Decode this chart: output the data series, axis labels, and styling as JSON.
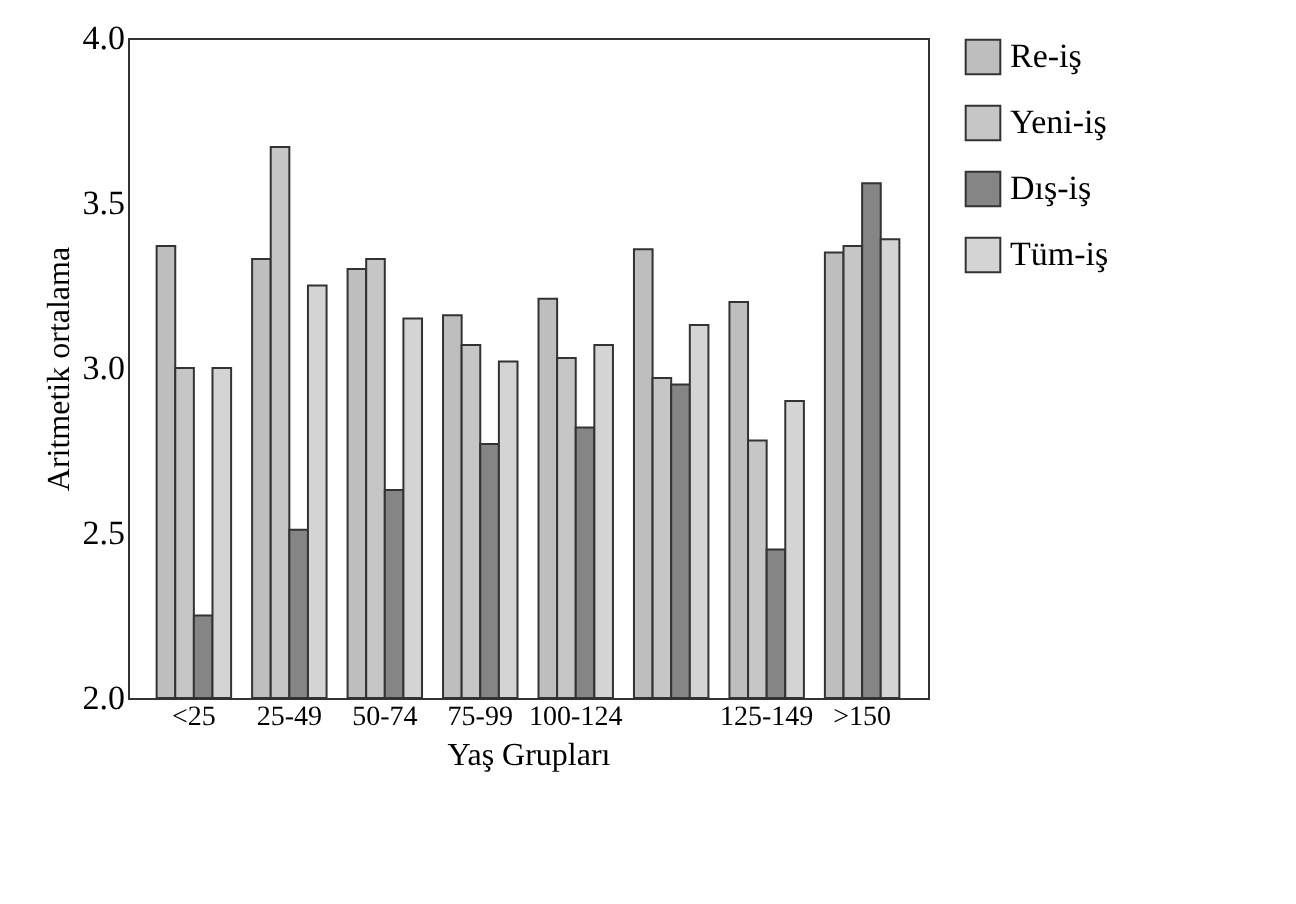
{
  "chart_data": {
    "type": "bar",
    "xlabel": "Yaş Grupları",
    "ylabel": "Aritmetik ortalama",
    "categories": [
      "<25",
      "25-49",
      "50-74",
      "75-99",
      "100-124",
      null,
      "125-149",
      ">150"
    ],
    "series": [
      {
        "name": "Re-iş",
        "color": "#bebebe",
        "values": [
          3.37,
          3.33,
          3.3,
          3.16,
          3.21,
          3.36,
          3.2,
          3.35
        ]
      },
      {
        "name": "Yeni-iş",
        "color": "#c6c6c6",
        "values": [
          3.0,
          3.67,
          3.33,
          3.07,
          3.03,
          2.97,
          2.78,
          3.37
        ]
      },
      {
        "name": "Dış-iş",
        "color": "#858585",
        "values": [
          2.25,
          2.51,
          2.63,
          2.77,
          2.82,
          2.95,
          2.45,
          3.56
        ]
      },
      {
        "name": "Tüm-iş",
        "color": "#d4d4d4",
        "values": [
          3.0,
          3.25,
          3.15,
          3.02,
          3.07,
          3.13,
          2.9,
          3.39
        ]
      }
    ],
    "ylim": [
      2.0,
      4.0
    ],
    "yticks": [
      {
        "value": 2,
        "label": "2.0"
      },
      2.5,
      {
        "value": 3,
        "label": "3.0"
      },
      3.5,
      {
        "value": 4,
        "label": "4.0"
      }
    ],
    "grid": false,
    "legend": "right"
  }
}
